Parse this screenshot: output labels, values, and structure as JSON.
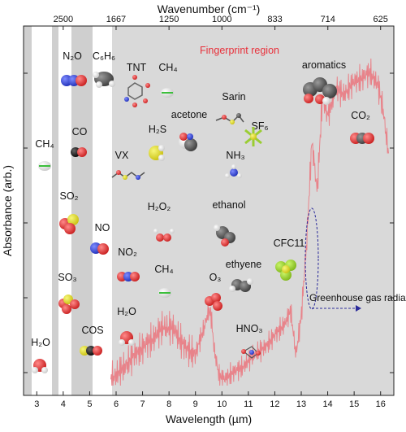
{
  "chart_data": {
    "type": "line",
    "xlabel": "Wavelength (µm)",
    "ylabel": "Absorbance (arb.)",
    "top_axis_label": "Wavenumber (cm⁻¹)",
    "x_ticks": [
      "3",
      "4",
      "5",
      "6",
      "7",
      "8",
      "9",
      "10",
      "11",
      "12",
      "13",
      "14",
      "15",
      "16"
    ],
    "top_ticks": [
      "2500",
      "1667",
      "1250",
      "1000",
      "833",
      "714",
      "625"
    ],
    "region_label": "Fingerprint region",
    "xlim": [
      2.5,
      16.5
    ],
    "series": [
      {
        "x": [
          5.8,
          6.2,
          6.6,
          7.0,
          7.4,
          7.8,
          8.2,
          8.6,
          9.0,
          9.3,
          9.5,
          9.6,
          9.7,
          9.9,
          10.1,
          10.4,
          10.8,
          11.2,
          11.6,
          12.0,
          12.4,
          12.6,
          12.8,
          13.0,
          13.2,
          13.4,
          13.6,
          13.8,
          14.0,
          14.3,
          14.6,
          15.0,
          15.3,
          15.6,
          15.9,
          16.1,
          16.3
        ],
        "y": [
          0.02,
          0.05,
          0.09,
          0.12,
          0.15,
          0.19,
          0.18,
          0.12,
          0.1,
          0.18,
          0.24,
          0.22,
          0.12,
          0.03,
          0.02,
          0.04,
          0.06,
          0.1,
          0.12,
          0.16,
          0.2,
          0.24,
          0.1,
          0.22,
          0.45,
          0.78,
          0.62,
          0.92,
          0.86,
          0.95,
          0.93,
          0.97,
          0.98,
          1.0,
          0.96,
          0.88,
          0.74
        ]
      }
    ],
    "annotations": [
      "Greenhouse gas radiation"
    ]
  },
  "molecules": [
    {
      "name": "N₂O",
      "icon": "n2o-molecule-icon"
    },
    {
      "name": "C₆H₆",
      "icon": "benzene-molecule-icon"
    },
    {
      "name": "TNT",
      "icon": "tnt-molecule-icon"
    },
    {
      "name": "CH₄",
      "icon": "methane-molecule-icon"
    },
    {
      "name": "aromatics",
      "icon": "aromatics-molecule-icon"
    },
    {
      "name": "Sarin",
      "icon": "sarin-molecule-icon"
    },
    {
      "name": "acetone",
      "icon": "acetone-molecule-icon"
    },
    {
      "name": "SF₆",
      "icon": "sf6-molecule-icon"
    },
    {
      "name": "H₂S",
      "icon": "h2s-molecule-icon"
    },
    {
      "name": "CO₂",
      "icon": "co2-molecule-icon"
    },
    {
      "name": "CH₄",
      "icon": "methane-molecule-icon"
    },
    {
      "name": "CO",
      "icon": "co-molecule-icon"
    },
    {
      "name": "VX",
      "icon": "vx-molecule-icon"
    },
    {
      "name": "NH₃",
      "icon": "ammonia-molecule-icon"
    },
    {
      "name": "SO₂",
      "icon": "so2-molecule-icon"
    },
    {
      "name": "H₂O₂",
      "icon": "h2o2-molecule-icon"
    },
    {
      "name": "ethanol",
      "icon": "ethanol-molecule-icon"
    },
    {
      "name": "NO",
      "icon": "no-molecule-icon"
    },
    {
      "name": "NO₂",
      "icon": "no2-molecule-icon"
    },
    {
      "name": "CFC11",
      "icon": "cfc11-molecule-icon"
    },
    {
      "name": "ethyene",
      "icon": "ethylene-molecule-icon"
    },
    {
      "name": "SO₃",
      "icon": "so3-molecule-icon"
    },
    {
      "name": "CH₄",
      "icon": "methane-molecule-icon"
    },
    {
      "name": "O₃",
      "icon": "ozone-molecule-icon"
    },
    {
      "name": "H₂O",
      "icon": "water-molecule-icon"
    },
    {
      "name": "HNO₃",
      "icon": "nitric-acid-molecule-icon"
    },
    {
      "name": "COS",
      "icon": "cos-molecule-icon"
    },
    {
      "name": "H₂O",
      "icon": "water-molecule-icon"
    }
  ],
  "colors": {
    "spectrum": "#e8838a",
    "region_label": "#e8303a",
    "fingerprint_bg": "#d9d9d9",
    "band_bg": "#cfcfcf",
    "annotation": "#2a2a9a"
  }
}
